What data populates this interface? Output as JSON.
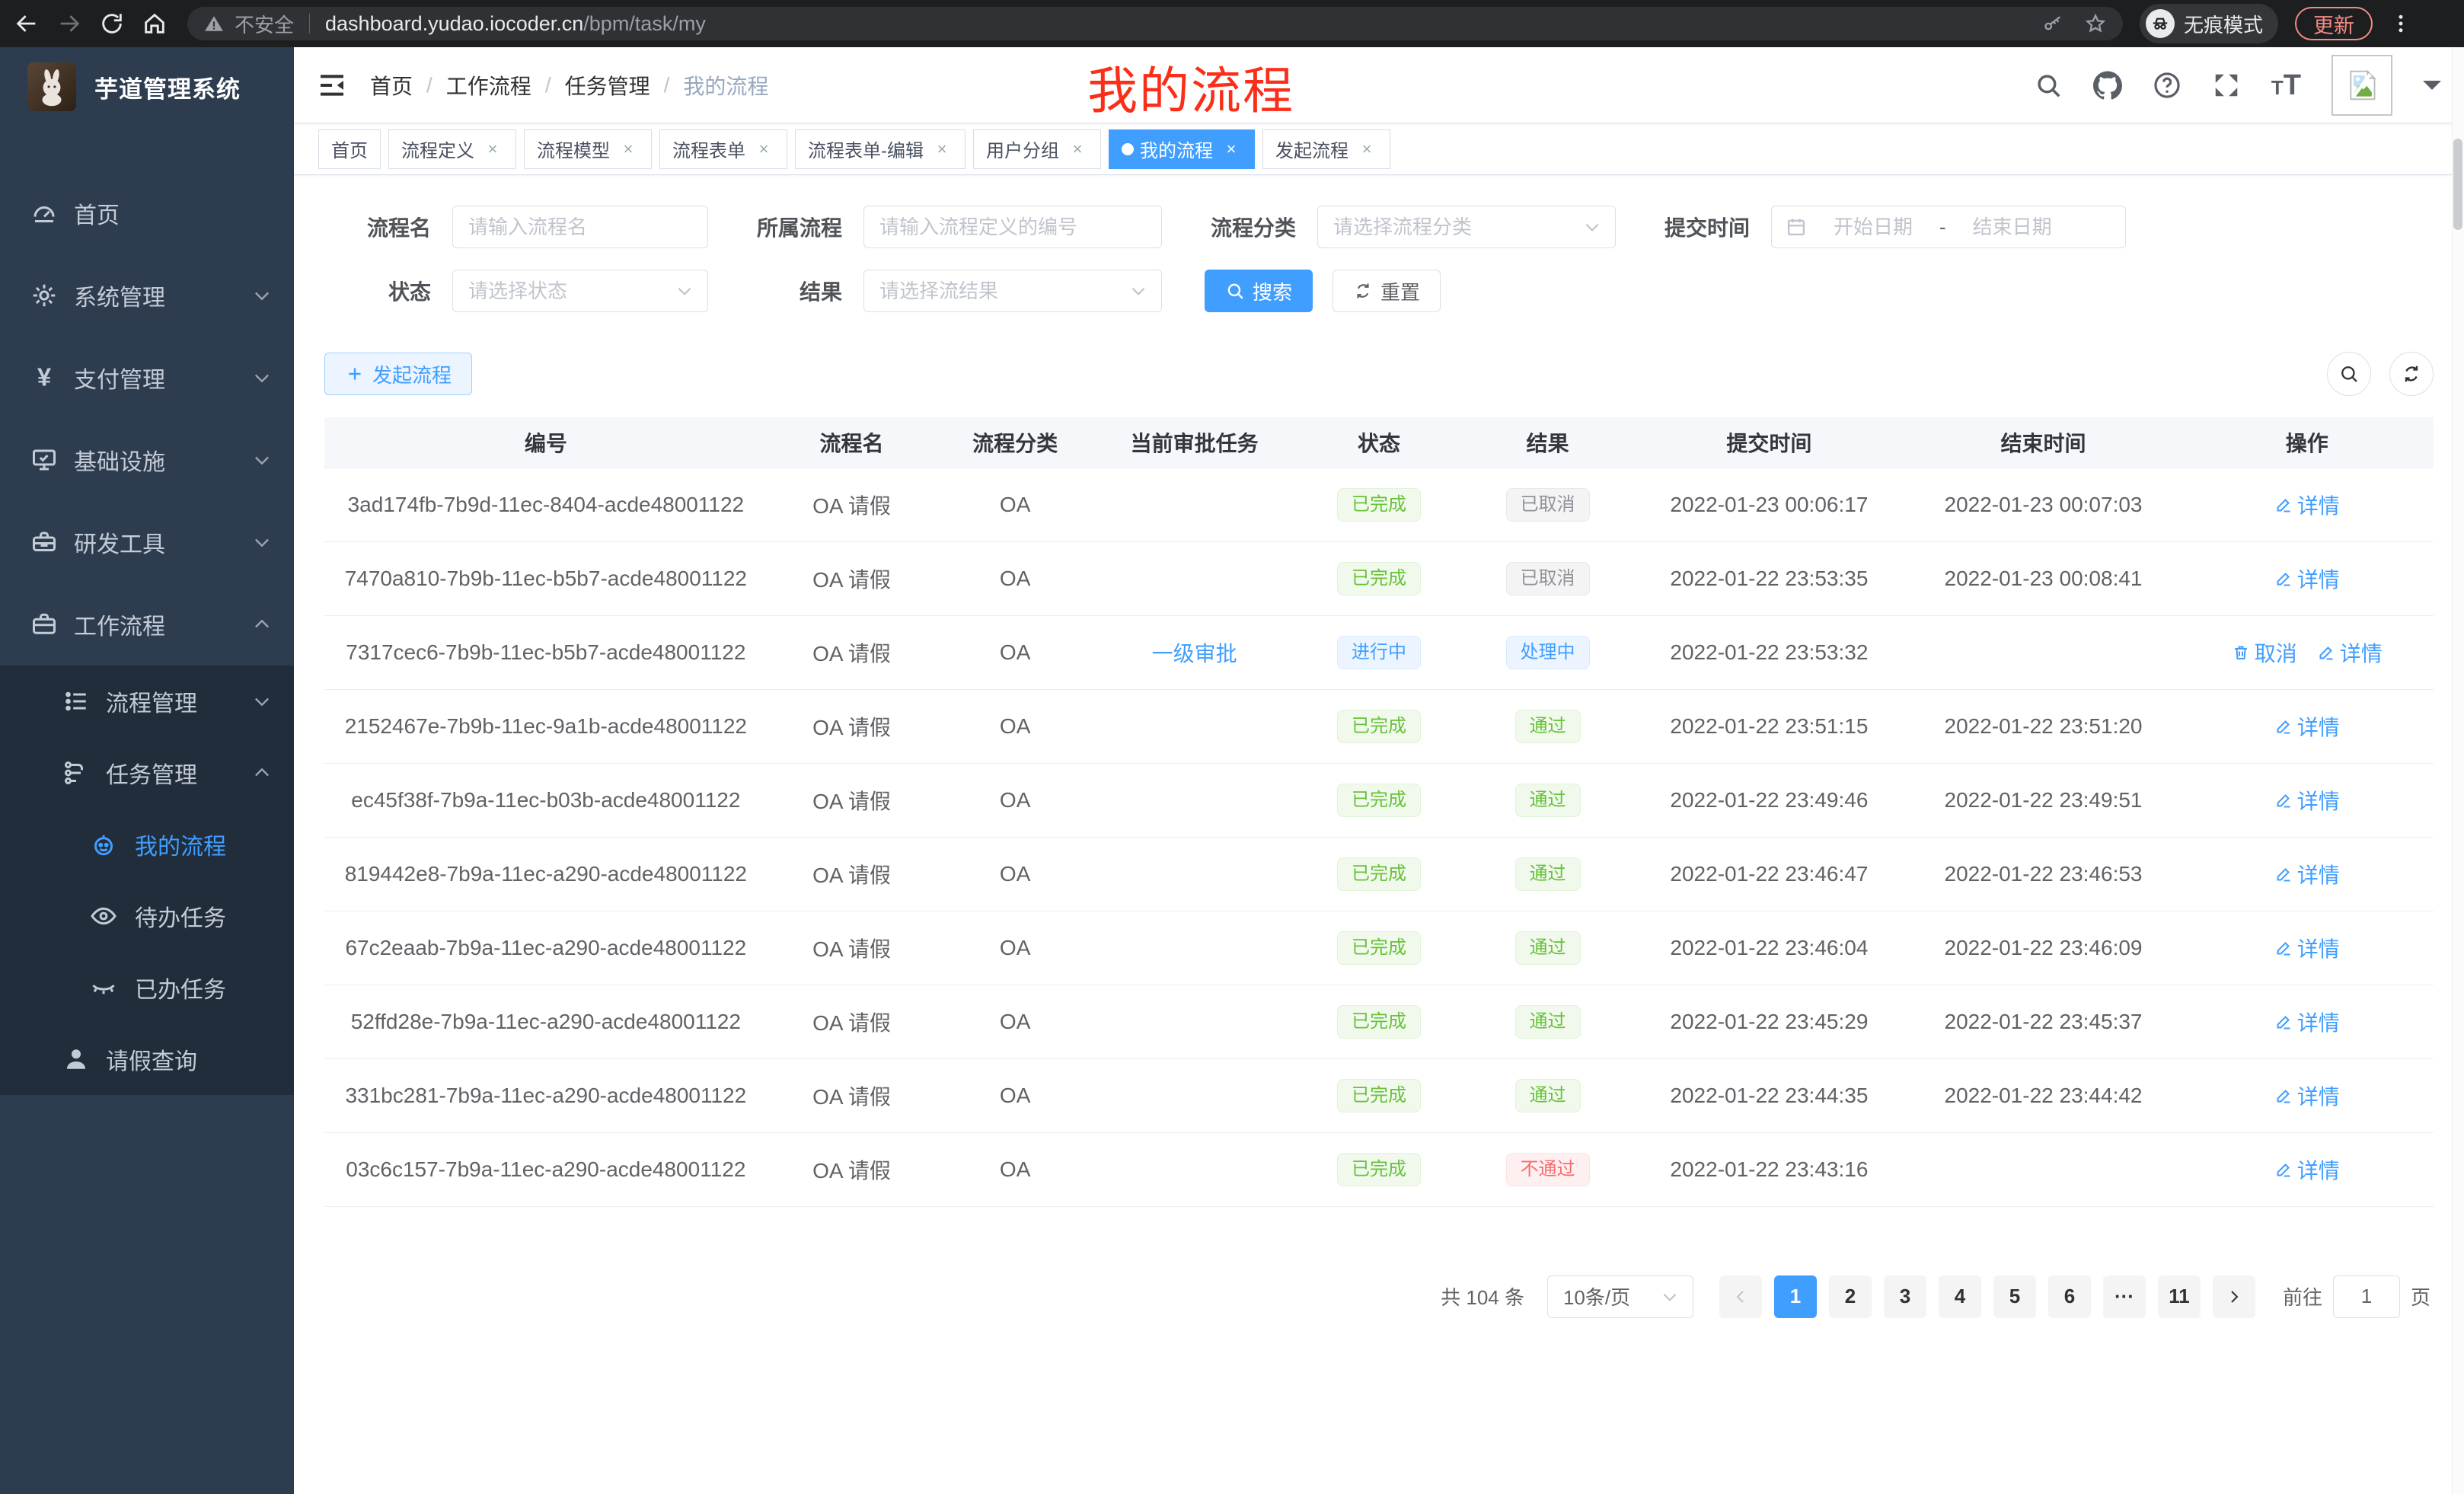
{
  "browser": {
    "security_label": "不安全",
    "url_host": "dashboard.yudao.iocoder.cn",
    "url_path": "/bpm/task/my",
    "incognito_label": "无痕模式",
    "update_label": "更新"
  },
  "annotation": {
    "text": "我的流程",
    "color": "#fb2e19"
  },
  "sidebar": {
    "app_title": "芋道管理系统",
    "items": [
      {
        "label": "首页",
        "icon": "dashboard-icon",
        "level": 1,
        "dark": false,
        "arrow": null,
        "active": false
      },
      {
        "label": "系统管理",
        "icon": "gear-icon",
        "level": 1,
        "dark": false,
        "arrow": "down",
        "active": false
      },
      {
        "label": "支付管理",
        "icon": "yen-icon",
        "level": 1,
        "dark": false,
        "arrow": "down",
        "active": false
      },
      {
        "label": "基础设施",
        "icon": "monitor-icon",
        "level": 1,
        "dark": false,
        "arrow": "down",
        "active": false
      },
      {
        "label": "研发工具",
        "icon": "toolbox-icon",
        "level": 1,
        "dark": false,
        "arrow": "down",
        "active": false
      },
      {
        "label": "工作流程",
        "icon": "briefcase-icon",
        "level": 1,
        "dark": false,
        "arrow": "up",
        "active": false
      },
      {
        "label": "流程管理",
        "icon": "list-icon",
        "level": 2,
        "dark": true,
        "arrow": "down",
        "active": false
      },
      {
        "label": "任务管理",
        "icon": "tree-icon",
        "level": 2,
        "dark": true,
        "arrow": "up",
        "active": false
      },
      {
        "label": "我的流程",
        "icon": "robot-icon",
        "level": 3,
        "dark": true,
        "arrow": null,
        "active": true
      },
      {
        "label": "待办任务",
        "icon": "eye-icon",
        "level": 3,
        "dark": true,
        "arrow": null,
        "active": false
      },
      {
        "label": "已办任务",
        "icon": "eye-closed-icon",
        "level": 3,
        "dark": true,
        "arrow": null,
        "active": false
      },
      {
        "label": "请假查询",
        "icon": "user-icon",
        "level": 2,
        "dark": true,
        "arrow": null,
        "active": false
      }
    ]
  },
  "breadcrumb": {
    "items": [
      "首页",
      "工作流程",
      "任务管理",
      "我的流程"
    ]
  },
  "tabs": [
    {
      "label": "首页",
      "closable": false,
      "active": false
    },
    {
      "label": "流程定义",
      "closable": true,
      "active": false
    },
    {
      "label": "流程模型",
      "closable": true,
      "active": false
    },
    {
      "label": "流程表单",
      "closable": true,
      "active": false
    },
    {
      "label": "流程表单-编辑",
      "closable": true,
      "active": false
    },
    {
      "label": "用户分组",
      "closable": true,
      "active": false
    },
    {
      "label": "我的流程",
      "closable": true,
      "active": true
    },
    {
      "label": "发起流程",
      "closable": true,
      "active": false
    }
  ],
  "filters": {
    "process_name": {
      "label": "流程名",
      "placeholder": "请输入流程名"
    },
    "process_def": {
      "label": "所属流程",
      "placeholder": "请输入流程定义的编号"
    },
    "category": {
      "label": "流程分类",
      "placeholder": "请选择流程分类"
    },
    "submit_time": {
      "label": "提交时间",
      "start_placeholder": "开始日期",
      "separator": "-",
      "end_placeholder": "结束日期"
    },
    "status": {
      "label": "状态",
      "placeholder": "请选择状态"
    },
    "result": {
      "label": "结果",
      "placeholder": "请选择流结果"
    },
    "search_label": "搜索",
    "reset_label": "重置"
  },
  "toolbar": {
    "create_label": "发起流程"
  },
  "table": {
    "columns": [
      "编号",
      "流程名",
      "流程分类",
      "当前审批任务",
      "状态",
      "结果",
      "提交时间",
      "结束时间",
      "操作"
    ],
    "col_widths": [
      "21%",
      "8%",
      "7.5%",
      "9.5%",
      "8%",
      "8%",
      "13%",
      "13%",
      "12%"
    ],
    "rows": [
      {
        "id": "3ad174fb-7b9d-11ec-8404-acde48001122",
        "name": "OA 请假",
        "category": "OA",
        "task": "",
        "status": {
          "text": "已完成",
          "type": "success"
        },
        "result": {
          "text": "已取消",
          "type": "info"
        },
        "submit_time": "2022-01-23 00:06:17",
        "end_time": "2022-01-23 00:07:03",
        "actions": [
          {
            "label": "详情",
            "icon": "edit-icon"
          }
        ]
      },
      {
        "id": "7470a810-7b9b-11ec-b5b7-acde48001122",
        "name": "OA 请假",
        "category": "OA",
        "task": "",
        "status": {
          "text": "已完成",
          "type": "success"
        },
        "result": {
          "text": "已取消",
          "type": "info"
        },
        "submit_time": "2022-01-22 23:53:35",
        "end_time": "2022-01-23 00:08:41",
        "actions": [
          {
            "label": "详情",
            "icon": "edit-icon"
          }
        ]
      },
      {
        "id": "7317cec6-7b9b-11ec-b5b7-acde48001122",
        "name": "OA 请假",
        "category": "OA",
        "task": "一级审批",
        "status": {
          "text": "进行中",
          "type": "primary"
        },
        "result": {
          "text": "处理中",
          "type": "primary"
        },
        "submit_time": "2022-01-22 23:53:32",
        "end_time": "",
        "actions": [
          {
            "label": "取消",
            "icon": "trash-icon"
          },
          {
            "label": "详情",
            "icon": "edit-icon"
          }
        ]
      },
      {
        "id": "2152467e-7b9b-11ec-9a1b-acde48001122",
        "name": "OA 请假",
        "category": "OA",
        "task": "",
        "status": {
          "text": "已完成",
          "type": "success"
        },
        "result": {
          "text": "通过",
          "type": "success"
        },
        "submit_time": "2022-01-22 23:51:15",
        "end_time": "2022-01-22 23:51:20",
        "actions": [
          {
            "label": "详情",
            "icon": "edit-icon"
          }
        ]
      },
      {
        "id": "ec45f38f-7b9a-11ec-b03b-acde48001122",
        "name": "OA 请假",
        "category": "OA",
        "task": "",
        "status": {
          "text": "已完成",
          "type": "success"
        },
        "result": {
          "text": "通过",
          "type": "success"
        },
        "submit_time": "2022-01-22 23:49:46",
        "end_time": "2022-01-22 23:49:51",
        "actions": [
          {
            "label": "详情",
            "icon": "edit-icon"
          }
        ]
      },
      {
        "id": "819442e8-7b9a-11ec-a290-acde48001122",
        "name": "OA 请假",
        "category": "OA",
        "task": "",
        "status": {
          "text": "已完成",
          "type": "success"
        },
        "result": {
          "text": "通过",
          "type": "success"
        },
        "submit_time": "2022-01-22 23:46:47",
        "end_time": "2022-01-22 23:46:53",
        "actions": [
          {
            "label": "详情",
            "icon": "edit-icon"
          }
        ]
      },
      {
        "id": "67c2eaab-7b9a-11ec-a290-acde48001122",
        "name": "OA 请假",
        "category": "OA",
        "task": "",
        "status": {
          "text": "已完成",
          "type": "success"
        },
        "result": {
          "text": "通过",
          "type": "success"
        },
        "submit_time": "2022-01-22 23:46:04",
        "end_time": "2022-01-22 23:46:09",
        "actions": [
          {
            "label": "详情",
            "icon": "edit-icon"
          }
        ]
      },
      {
        "id": "52ffd28e-7b9a-11ec-a290-acde48001122",
        "name": "OA 请假",
        "category": "OA",
        "task": "",
        "status": {
          "text": "已完成",
          "type": "success"
        },
        "result": {
          "text": "通过",
          "type": "success"
        },
        "submit_time": "2022-01-22 23:45:29",
        "end_time": "2022-01-22 23:45:37",
        "actions": [
          {
            "label": "详情",
            "icon": "edit-icon"
          }
        ]
      },
      {
        "id": "331bc281-7b9a-11ec-a290-acde48001122",
        "name": "OA 请假",
        "category": "OA",
        "task": "",
        "status": {
          "text": "已完成",
          "type": "success"
        },
        "result": {
          "text": "通过",
          "type": "success"
        },
        "submit_time": "2022-01-22 23:44:35",
        "end_time": "2022-01-22 23:44:42",
        "actions": [
          {
            "label": "详情",
            "icon": "edit-icon"
          }
        ]
      },
      {
        "id": "03c6c157-7b9a-11ec-a290-acde48001122",
        "name": "OA 请假",
        "category": "OA",
        "task": "",
        "status": {
          "text": "已完成",
          "type": "success"
        },
        "result": {
          "text": "不通过",
          "type": "danger"
        },
        "submit_time": "2022-01-22 23:43:16",
        "end_time": "",
        "actions": [
          {
            "label": "详情",
            "icon": "edit-icon"
          }
        ]
      }
    ]
  },
  "pagination": {
    "total_label": "共 104 条",
    "page_size": "10条/页",
    "pages": [
      "1",
      "2",
      "3",
      "4",
      "5",
      "6",
      "···",
      "11"
    ],
    "active_page": "1",
    "jump_prefix": "前往",
    "jump_value": "1",
    "jump_suffix": "页"
  },
  "colors": {
    "accent": "#409eff",
    "success": "#67c23a",
    "info": "#909399",
    "danger": "#f56c6c",
    "sidebar_bg": "#2e3c50",
    "submenu_bg": "#212d3b",
    "annotation_red": "#fb2e19",
    "update_red": "#f28b82"
  }
}
